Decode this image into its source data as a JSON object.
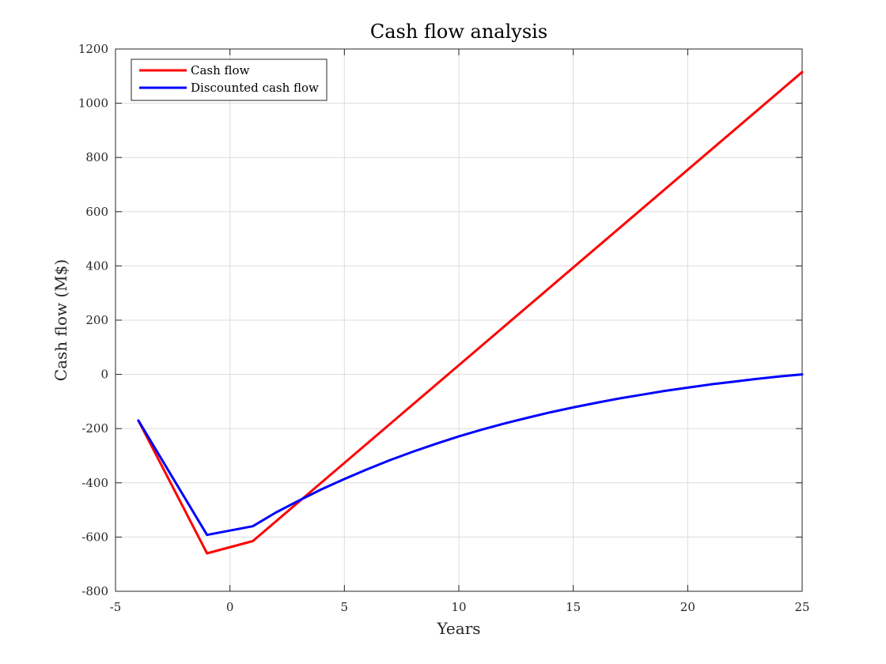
{
  "chart_data": {
    "type": "line",
    "title": "Cash flow analysis",
    "xlabel": "Years",
    "ylabel": "Cash flow (M$)",
    "xlim": [
      -5,
      25
    ],
    "ylim": [
      -800,
      1200
    ],
    "xticks": [
      "-5",
      "0",
      "5",
      "10",
      "15",
      "20",
      "25"
    ],
    "yticks": [
      "-800",
      "-600",
      "-400",
      "-200",
      "0",
      "200",
      "400",
      "600",
      "800",
      "1000",
      "1200"
    ],
    "grid": true,
    "legend_position": "top-left",
    "series": [
      {
        "name": "Cash flow",
        "color": "#ff0000",
        "x": [
          -4,
          -1,
          1,
          25
        ],
        "y": [
          -170,
          -660,
          -615,
          1115
        ]
      },
      {
        "name": "Discounted cash flow",
        "color": "#0000ff",
        "x": [
          -4,
          -1,
          1,
          2,
          3,
          4,
          5,
          6,
          7,
          8,
          9,
          10,
          11,
          12,
          13,
          14,
          15,
          16,
          17,
          18,
          19,
          20,
          21,
          22,
          23,
          24,
          25
        ],
        "y": [
          -170,
          -592,
          -560,
          -510,
          -466,
          -424,
          -386,
          -350,
          -316,
          -285,
          -256,
          -229,
          -204,
          -181,
          -160,
          -140,
          -122,
          -105,
          -89,
          -75,
          -61,
          -49,
          -37,
          -27,
          -17,
          -8,
          0
        ]
      }
    ]
  }
}
